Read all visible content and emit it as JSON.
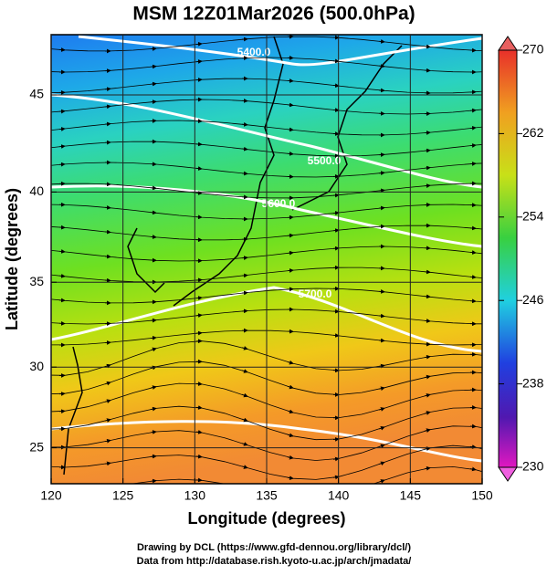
{
  "map": {
    "title": "MSM 12Z01Mar2026 (500.0hPa)",
    "xlabel": "Longitude (degrees)",
    "ylabel": "Latitude  (degrees)",
    "xlim": [
      120,
      150
    ],
    "ylim": [
      22.7,
      47.9
    ],
    "xticks": [
      120,
      125,
      130,
      135,
      140,
      145,
      150
    ],
    "yticks": [
      25,
      30,
      35,
      40,
      45
    ],
    "grid": true,
    "contour_labels": [
      "5400.0",
      "5500.0",
      "5600.0",
      "5700.0"
    ],
    "colorbar": {
      "lim": [
        230,
        270
      ],
      "ticks": [
        230,
        238,
        246,
        254,
        262,
        270
      ]
    },
    "credits": [
      "Drawing by DCL (https://www.gfd-dennou.org/library/dcl/)",
      "Data from http://database.rish.kyoto-u.ac.jp/arch/jmadata/"
    ]
  }
}
